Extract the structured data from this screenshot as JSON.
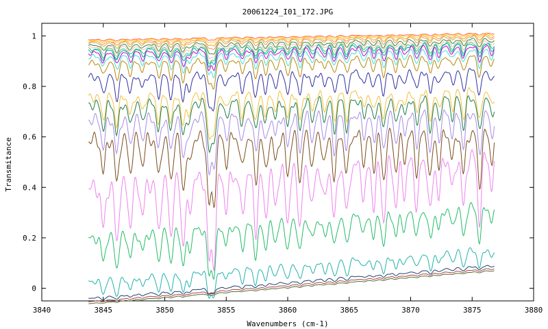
{
  "chart_data": {
    "type": "line",
    "title": "20061224_I01_172.JPG",
    "xlabel": "Wavenumbers (cm-1)",
    "ylabel": "Transmitance",
    "xlim": [
      3840,
      3880
    ],
    "ylim": [
      -0.05,
      1.05
    ],
    "x_ticks": [
      3840,
      3845,
      3850,
      3855,
      3860,
      3865,
      3870,
      3875,
      3880
    ],
    "y_ticks": [
      0,
      0.2,
      0.4,
      0.6,
      0.8,
      1
    ],
    "x_tick_labels": [
      "3840",
      "3845",
      "3850",
      "3855",
      "3860",
      "3865",
      "3870",
      "3875",
      "3880"
    ],
    "y_tick_labels": [
      "0",
      "0.2",
      "0.4",
      "0.6",
      "0.8",
      "1"
    ],
    "grid": false,
    "x_range_of_spectra": [
      3843.8,
      3876.8
    ],
    "line_positions_cm1": [
      3845.0,
      3846.1,
      3847.2,
      3848.2,
      3849.5,
      3850.5,
      3851.5,
      3852.0,
      3853.6,
      3854.0,
      3855.0,
      3856.3,
      3857.4,
      3858.2,
      3859.0,
      3860.0,
      3861.0,
      3862.0,
      3863.0,
      3863.8,
      3864.8,
      3866.2,
      3867.0,
      3867.8,
      3868.8,
      3869.5,
      3870.5,
      3871.6,
      3872.3,
      3873.4,
      3874.3,
      3875.6,
      3876.6
    ],
    "series": [
      {
        "color": "#ff6060",
        "baseline": 0.998,
        "depth": 0.006
      },
      {
        "color": "#ffd000",
        "baseline": 0.995,
        "depth": 0.01
      },
      {
        "color": "#ff9933",
        "baseline": 0.99,
        "depth": 0.015
      },
      {
        "color": "#d4a24c",
        "baseline": 0.985,
        "depth": 0.02
      },
      {
        "color": "#3a8a3a",
        "baseline": 0.975,
        "depth": 0.025
      },
      {
        "color": "#ffb6c1",
        "baseline": 0.968,
        "depth": 0.03
      },
      {
        "color": "#33cc66",
        "baseline": 0.96,
        "depth": 0.035
      },
      {
        "color": "#00aaaa",
        "baseline": 0.955,
        "depth": 0.04
      },
      {
        "color": "#cc00cc",
        "baseline": 0.945,
        "depth": 0.045
      },
      {
        "color": "#40e0d0",
        "baseline": 0.93,
        "depth": 0.05
      },
      {
        "color": "#b8860b",
        "baseline": 0.905,
        "depth": 0.06
      },
      {
        "color": "#2e2e9e",
        "baseline": 0.85,
        "depth": 0.08
      },
      {
        "color": "#f0c040",
        "baseline": 0.77,
        "depth": 0.1
      },
      {
        "color": "#1e7a45",
        "baseline": 0.74,
        "depth": 0.11
      },
      {
        "color": "#a58ae6",
        "baseline": 0.68,
        "depth": 0.13
      },
      {
        "color": "#7a4a1a",
        "baseline": 0.6,
        "depth": 0.16
      },
      {
        "color": "#ee82ee",
        "baseline": 0.46,
        "depth": 0.2
      },
      {
        "color": "#22bb66",
        "baseline": 0.26,
        "depth": 0.11
      },
      {
        "color": "#20b2aa",
        "baseline": 0.09,
        "depth": 0.06
      },
      {
        "color": "#1f3f6f",
        "baseline": 0.025,
        "depth": 0.012
      },
      {
        "color": "#aa4444",
        "baseline": 0.012,
        "depth": 0.006
      },
      {
        "color": "#556b2f",
        "baseline": 0.004,
        "depth": 0.004
      }
    ]
  }
}
